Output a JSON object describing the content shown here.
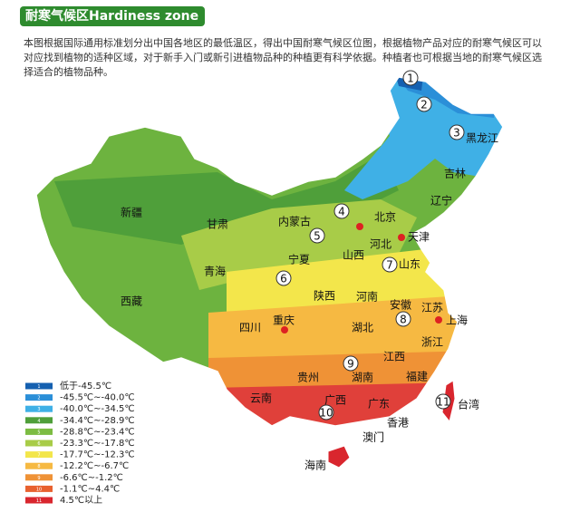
{
  "header": {
    "title": "耐寒气候区Hardiness zone"
  },
  "description": "本图根据国际通用标准划分出中国各地区的最低温区，得出中国耐寒气候区位图，根据植物产品对应的耐寒气候区可以对应找到植物的适种区域，对于新手入门或新引进植物品种的种植更有科学依据。种植者也可根据当地的耐寒气候区选择适合的植物品种。",
  "map": {
    "regions": [
      "新疆",
      "甘肃",
      "内蒙古",
      "北京",
      "天津",
      "河北",
      "山西",
      "辽宁",
      "吉林",
      "黑龙江",
      "宁夏",
      "青海",
      "山东",
      "陕西",
      "河南",
      "安徽",
      "江苏",
      "上海",
      "西藏",
      "四川",
      "重庆",
      "湖北",
      "浙江",
      "江西",
      "贵州",
      "湖南",
      "福建",
      "云南",
      "广西",
      "广东",
      "台湾",
      "香港",
      "澳门",
      "海南"
    ],
    "zones": [
      "1",
      "2",
      "3",
      "4",
      "5",
      "6",
      "7",
      "8",
      "9",
      "10",
      "11"
    ]
  },
  "legend": {
    "items": [
      {
        "number": "1",
        "color": "#1560b0",
        "label": "低于-45.5℃"
      },
      {
        "number": "2",
        "color": "#2b8fd8",
        "label": "-45.5℃~-40.0℃"
      },
      {
        "number": "3",
        "color": "#3fb0e6",
        "label": "-40.0℃~-34.5℃"
      },
      {
        "number": "4",
        "color": "#4f9f3a",
        "label": "-34.4℃~-28.9℃"
      },
      {
        "number": "5",
        "color": "#7cbc42",
        "label": "-28.8℃~-23.4℃"
      },
      {
        "number": "6",
        "color": "#a8cc48",
        "label": "-23.3℃~-17.8℃"
      },
      {
        "number": "7",
        "color": "#f3e64b",
        "label": "-17.7℃~-12.3℃"
      },
      {
        "number": "8",
        "color": "#f6b942",
        "label": "-12.2℃~-6.7℃"
      },
      {
        "number": "9",
        "color": "#ef9236",
        "label": "-6.6℃~-1.2℃"
      },
      {
        "number": "10",
        "color": "#e8612f",
        "label": "-1.1℃~4.4℃"
      },
      {
        "number": "11",
        "color": "#d9262e",
        "label": "4.5℃以上"
      }
    ]
  }
}
